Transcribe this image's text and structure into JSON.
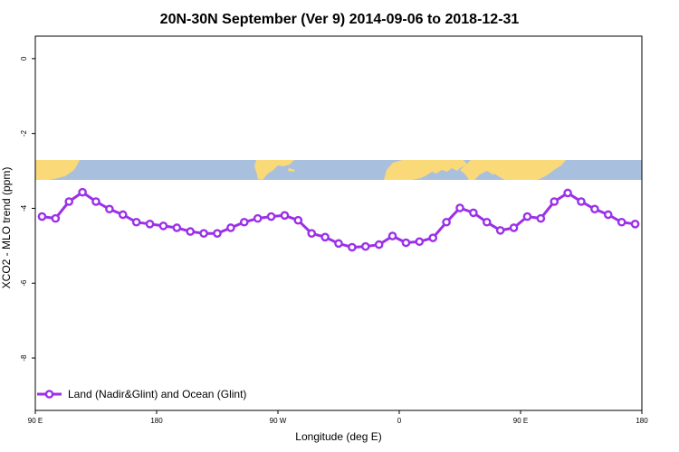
{
  "chart_data": {
    "type": "line",
    "title": "20N-30N September (Ver 9)   2014-09-06 to 2018-12-31",
    "xlabel": "Longitude (deg E)",
    "ylabel": "XCO2 - MLO trend (ppm)",
    "xlim": [
      90,
      540
    ],
    "ylim": [
      -9.4,
      0.6
    ],
    "x_ticks": [
      {
        "value": 90,
        "label": "90 E"
      },
      {
        "value": 180,
        "label": "180"
      },
      {
        "value": 270,
        "label": "90 W"
      },
      {
        "value": 360,
        "label": "0"
      },
      {
        "value": 450,
        "label": "90 E"
      },
      {
        "value": 540,
        "label": "180"
      }
    ],
    "y_ticks": [
      {
        "value": 0,
        "label": "0"
      },
      {
        "value": -2,
        "label": "-2"
      },
      {
        "value": -4,
        "label": "-4"
      },
      {
        "value": -6,
        "label": "-6"
      },
      {
        "value": -8,
        "label": "-8"
      }
    ],
    "grid": false,
    "legend_position": "bottom-left",
    "series": [
      {
        "name": "Land (Nadir&Glint) and Ocean (Glint)",
        "color": "#9b30e8",
        "x": [
          95,
          105,
          115,
          125,
          135,
          145,
          155,
          165,
          175,
          185,
          195,
          205,
          215,
          225,
          235,
          245,
          255,
          265,
          275,
          285,
          295,
          305,
          315,
          325,
          335,
          345,
          355,
          365,
          375,
          385,
          395,
          405,
          415,
          425,
          435,
          445,
          455,
          465,
          475,
          485,
          495,
          505,
          515,
          525,
          535
        ],
        "y": [
          -4.22,
          -4.27,
          -3.82,
          -3.57,
          -3.82,
          -4.02,
          -4.17,
          -4.37,
          -4.42,
          -4.47,
          -4.52,
          -4.62,
          -4.67,
          -4.67,
          -4.52,
          -4.37,
          -4.27,
          -4.22,
          -4.19,
          -4.32,
          -4.67,
          -4.77,
          -4.94,
          -5.04,
          -5.02,
          -4.97,
          -4.74,
          -4.92,
          -4.89,
          -4.79,
          -4.37,
          -3.99,
          -4.12,
          -4.37,
          -4.59,
          -4.52,
          -4.22,
          -4.27,
          -3.82,
          -3.59,
          -3.82,
          -4.02,
          -4.17,
          -4.37,
          -4.42
        ]
      }
    ],
    "background_map": {
      "type": "world-map-strip",
      "ocean_color": "#a9bfde",
      "land_color": "#f9d978"
    }
  }
}
